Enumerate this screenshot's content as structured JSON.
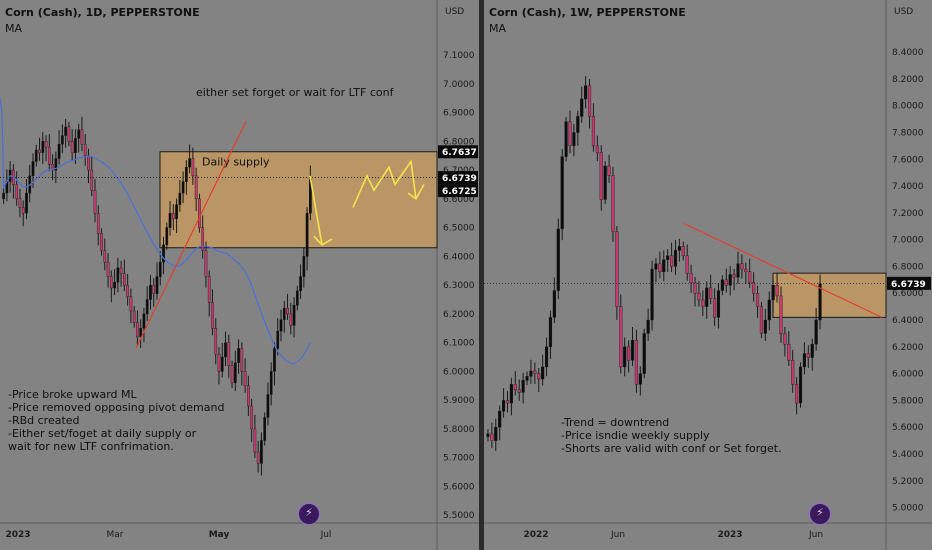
{
  "chart_data": [
    {
      "type": "candlestick",
      "title": "Corn (Cash), 1D, PEPPERSTONE",
      "subtitle": "MA",
      "currency": "USD",
      "ylim": [
        5.48,
        7.18
      ],
      "y_ticks": [
        "7.1000",
        "7.0000",
        "6.9000",
        "6.8000",
        "6.7000",
        "6.6000",
        "6.5000",
        "6.4000",
        "6.3000",
        "6.2000",
        "6.1000",
        "6.0000",
        "5.9000",
        "5.8000",
        "5.7000",
        "5.6000",
        "5.5000"
      ],
      "x_ticks": [
        "2023",
        "Mar",
        "May",
        "Jul"
      ],
      "price_labels": [
        {
          "text": "6.7637",
          "value": 6.7637
        },
        {
          "text": "6.6739",
          "value": 6.6739
        },
        {
          "text": "6.6725",
          "value": 6.6725
        }
      ],
      "zone": {
        "label": "Daily supply",
        "top": 6.7637,
        "bottom": 6.43
      },
      "annotation": "either set forget or wait for LTF conf",
      "notes": [
        "-Price broke upward ML",
        "-Price removed opposing pivot demand",
        "-RBd created",
        "-Either set/foget at daily supply or",
        "wait for new LTF confrimation."
      ],
      "closes": [
        6.62,
        6.66,
        6.7,
        6.65,
        6.6,
        6.57,
        6.55,
        6.62,
        6.68,
        6.73,
        6.77,
        6.76,
        6.8,
        6.78,
        6.72,
        6.7,
        6.74,
        6.79,
        6.82,
        6.85,
        6.8,
        6.76,
        6.81,
        6.84,
        6.79,
        6.75,
        6.7,
        6.63,
        6.55,
        6.48,
        6.42,
        6.38,
        6.33,
        6.29,
        6.31,
        6.36,
        6.34,
        6.3,
        6.26,
        6.21,
        6.17,
        6.12,
        6.15,
        6.2,
        6.25,
        6.3,
        6.27,
        6.33,
        6.38,
        6.44,
        6.5,
        6.55,
        6.53,
        6.58,
        6.62,
        6.66,
        6.71,
        6.74,
        6.68,
        6.6,
        6.5,
        6.42,
        6.33,
        6.24,
        6.15,
        6.06,
        6.0,
        6.05,
        6.1,
        6.02,
        5.96,
        6.03,
        6.08,
        6.0,
        5.95,
        5.88,
        5.8,
        5.72,
        5.68,
        5.76,
        5.84,
        5.92,
        6.0,
        6.08,
        6.14,
        6.18,
        6.22,
        6.2,
        6.16,
        6.23,
        6.28,
        6.33,
        6.4,
        6.55,
        6.67
      ]
    },
    {
      "type": "candlestick",
      "title": "Corn (Cash), 1W, PEPPERSTONE",
      "subtitle": "MA",
      "currency": "USD",
      "ylim": [
        4.9,
        8.55
      ],
      "y_ticks": [
        "8.4000",
        "8.2000",
        "8.0000",
        "7.8000",
        "7.6000",
        "7.4000",
        "7.2000",
        "7.0000",
        "6.8000",
        "6.6000",
        "6.4000",
        "6.2000",
        "6.0000",
        "5.8000",
        "5.6000",
        "5.4000",
        "5.2000",
        "5.0000"
      ],
      "x_ticks": [
        "2022",
        "Jun",
        "2023",
        "Jun"
      ],
      "price_labels": [
        {
          "text": "6.6739",
          "value": 6.6739
        }
      ],
      "zone": {
        "label": "",
        "top": 6.75,
        "bottom": 6.42
      },
      "notes": [
        "-Trend = downtrend",
        "-Price isndie weekly supply",
        "-Shorts are valid with conf or Set forget."
      ],
      "closes": [
        5.55,
        5.5,
        5.6,
        5.72,
        5.8,
        5.78,
        5.92,
        5.88,
        5.86,
        5.95,
        5.98,
        6.02,
        6.0,
        5.96,
        6.05,
        6.2,
        6.42,
        6.62,
        7.08,
        7.62,
        7.88,
        7.7,
        7.8,
        7.92,
        8.05,
        8.15,
        7.92,
        7.7,
        7.65,
        7.3,
        7.55,
        7.48,
        7.06,
        6.5,
        6.05,
        6.2,
        6.1,
        6.25,
        5.92,
        6.0,
        6.3,
        6.4,
        6.78,
        6.82,
        6.76,
        6.85,
        6.88,
        6.8,
        6.92,
        6.95,
        6.88,
        6.75,
        6.68,
        6.6,
        6.55,
        6.5,
        6.64,
        6.56,
        6.42,
        6.62,
        6.7,
        6.66,
        6.74,
        6.72,
        6.82,
        6.78,
        6.76,
        6.68,
        6.6,
        6.5,
        6.3,
        6.4,
        6.55,
        6.66,
        6.58,
        6.3,
        6.22,
        6.1,
        5.92,
        5.78,
        6.05,
        6.15,
        6.12,
        6.22,
        6.4,
        6.67
      ]
    }
  ]
}
